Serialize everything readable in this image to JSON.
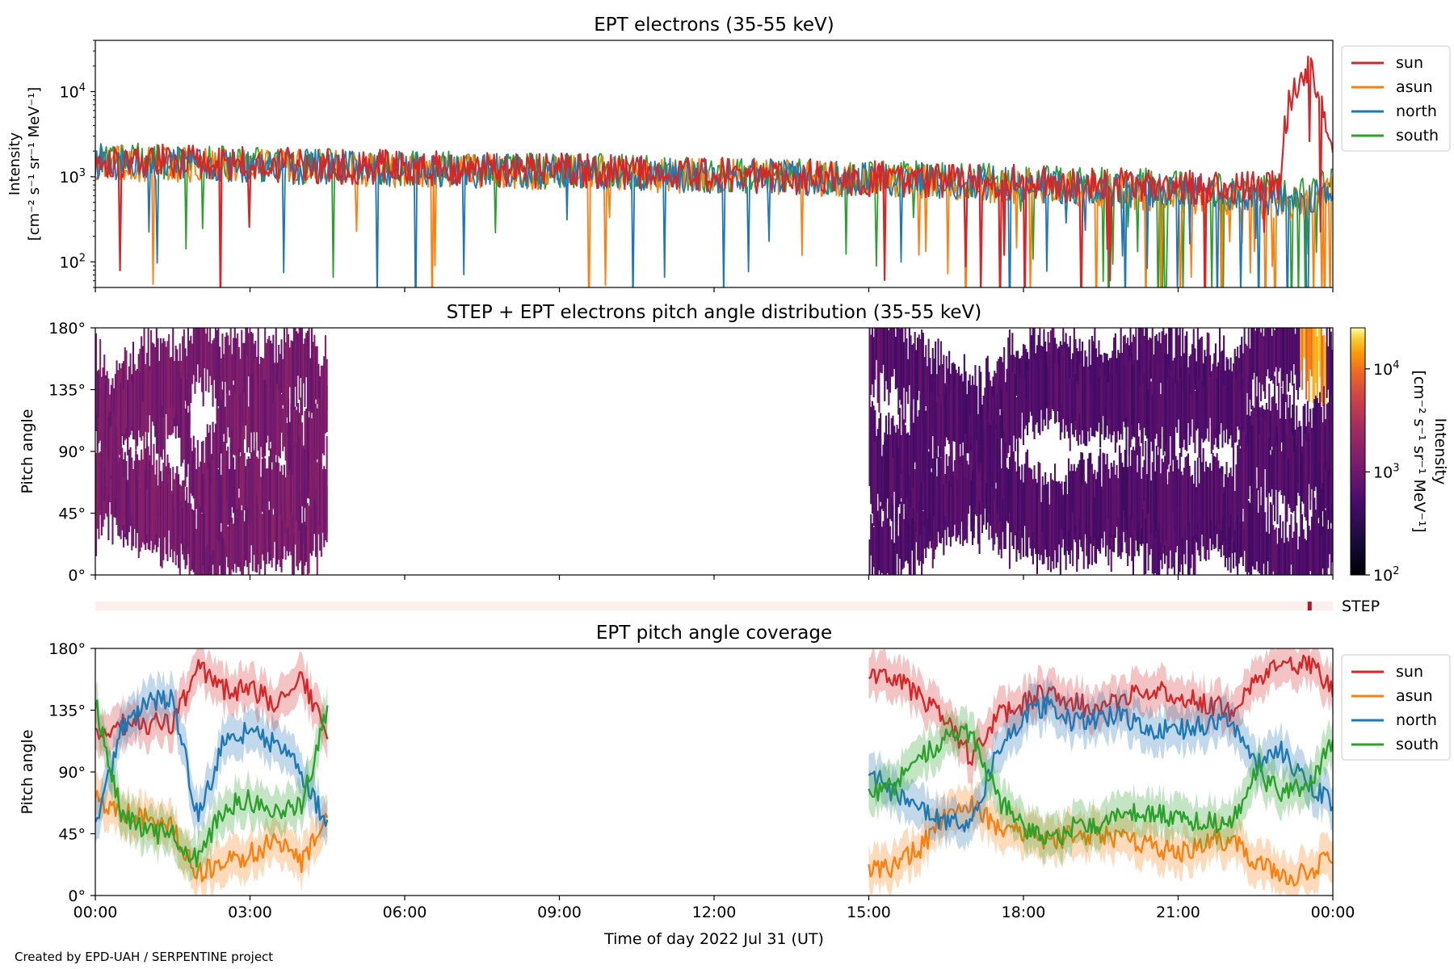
{
  "figure": {
    "credit": "Created by EPD-UAH / SERPENTINE project",
    "xlabel": "Time of day 2022 Jul 31 (UT)",
    "xticks": [
      "00:00",
      "03:00",
      "06:00",
      "09:00",
      "12:00",
      "15:00",
      "18:00",
      "21:00",
      "00:00"
    ]
  },
  "chart_data": [
    {
      "type": "line",
      "title": "EPT electrons (35-55 keV)",
      "ylabel_line1": "Intensity",
      "ylabel_line2": "[cm⁻² s⁻¹ sr⁻¹ MeV⁻¹]",
      "yscale": "log",
      "ylim": [
        50,
        40000
      ],
      "yticks": [
        {
          "label": "10",
          "sup": "2",
          "value": 100
        },
        {
          "label": "10",
          "sup": "3",
          "value": 1000
        },
        {
          "label": "10",
          "sup": "4",
          "value": 10000
        }
      ],
      "xlim_hours": [
        0,
        24
      ],
      "legend_position": "outside-right",
      "x_hours": [
        0,
        1,
        2,
        3,
        4,
        5,
        6,
        7,
        8,
        9,
        10,
        11,
        12,
        13,
        14,
        15,
        16,
        17,
        18,
        19,
        20,
        21,
        22,
        23,
        23.5,
        23.9,
        24
      ],
      "series": [
        {
          "name": "sun",
          "color": "#d62728",
          "values": [
            1600,
            1500,
            1450,
            1400,
            1350,
            1300,
            1300,
            1250,
            1200,
            1200,
            1150,
            1100,
            1050,
            1000,
            1000,
            950,
            900,
            900,
            850,
            800,
            800,
            750,
            750,
            800,
            20000,
            3000,
            1500
          ]
        },
        {
          "name": "asun",
          "color": "#ff7f0e",
          "values": [
            1500,
            1400,
            1350,
            1300,
            1300,
            1250,
            1200,
            1200,
            1150,
            1100,
            1100,
            1050,
            1000,
            1000,
            950,
            900,
            850,
            800,
            750,
            700,
            650,
            600,
            550,
            500,
            500,
            600,
            650
          ]
        },
        {
          "name": "north",
          "color": "#1f77b4",
          "values": [
            1500,
            1450,
            1400,
            1350,
            1300,
            1250,
            1250,
            1200,
            1150,
            1150,
            1100,
            1050,
            1000,
            1000,
            950,
            950,
            900,
            850,
            800,
            750,
            700,
            650,
            600,
            550,
            550,
            600,
            650
          ]
        },
        {
          "name": "south",
          "color": "#2ca02c",
          "values": [
            1600,
            1550,
            1450,
            1400,
            1350,
            1300,
            1250,
            1250,
            1200,
            1150,
            1150,
            1100,
            1050,
            1000,
            1000,
            950,
            950,
            900,
            850,
            800,
            800,
            750,
            700,
            650,
            700,
            750,
            800
          ]
        }
      ]
    },
    {
      "type": "heatmap",
      "title": "STEP + EPT electrons pitch angle distribution (35-55 keV)",
      "ylabel": "Pitch angle",
      "ylim": [
        0,
        180
      ],
      "yticks": [
        "0°",
        "45°",
        "90°",
        "135°",
        "180°"
      ],
      "ytick_values": [
        0,
        45,
        90,
        135,
        180
      ],
      "xlim_hours": [
        0,
        24
      ],
      "colorbar": {
        "label_line1": "Intensity",
        "label_line2": "[cm⁻² s⁻¹ sr⁻¹ MeV⁻¹]",
        "scale": "log",
        "range": [
          100,
          25000
        ],
        "ticks": [
          {
            "label": "10",
            "sup": "2",
            "value": 100
          },
          {
            "label": "10",
            "sup": "3",
            "value": 1000
          },
          {
            "label": "10",
            "sup": "4",
            "value": 10000
          }
        ],
        "colormap": "inferno"
      },
      "data_windows_hours": [
        [
          0,
          4.5
        ],
        [
          15,
          24
        ]
      ],
      "typical_intensity": [
        {
          "window": [
            0,
            4.5
          ],
          "value": 1200
        },
        {
          "window": [
            15,
            24
          ],
          "value": 600
        }
      ],
      "peak": {
        "hour": 23.6,
        "pitch_range": [
          120,
          180
        ],
        "value": 20000
      }
    },
    {
      "type": "bar",
      "label": "STEP",
      "xlim_hours": [
        0,
        24
      ],
      "marker_hour": 23.55,
      "colors": {
        "background": "#fdf0ec",
        "marker": "#b2182b"
      }
    },
    {
      "type": "line",
      "title": "EPT pitch angle coverage",
      "ylabel": "Pitch angle",
      "ylim": [
        0,
        180
      ],
      "yticks": [
        "0°",
        "45°",
        "90°",
        "135°",
        "180°"
      ],
      "ytick_values": [
        0,
        45,
        90,
        135,
        180
      ],
      "xlim_hours": [
        0,
        24
      ],
      "legend_position": "outside-right",
      "segments_hours": [
        [
          0,
          4.5
        ],
        [
          15,
          24
        ]
      ],
      "x_hours": [
        0,
        0.5,
        1,
        1.5,
        2,
        2.5,
        3,
        3.5,
        4,
        4.5,
        15,
        15.5,
        16,
        16.5,
        17,
        17.5,
        18,
        18.5,
        19,
        19.5,
        20,
        20.5,
        21,
        21.5,
        22,
        22.5,
        23,
        23.5,
        24
      ],
      "series": [
        {
          "name": "sun",
          "color": "#d62728",
          "values": [
            115,
            125,
            125,
            125,
            165,
            150,
            150,
            140,
            160,
            115,
            160,
            160,
            145,
            125,
            100,
            130,
            140,
            150,
            140,
            135,
            145,
            150,
            145,
            140,
            135,
            160,
            165,
            170,
            150
          ]
        },
        {
          "name": "asun",
          "color": "#ff7f0e",
          "values": [
            70,
            60,
            55,
            50,
            15,
            25,
            30,
            40,
            25,
            55,
            20,
            20,
            35,
            60,
            65,
            50,
            45,
            40,
            45,
            45,
            40,
            35,
            30,
            40,
            40,
            25,
            15,
            15,
            30
          ]
        },
        {
          "name": "north",
          "color": "#1f77b4",
          "values": [
            50,
            120,
            140,
            145,
            55,
            115,
            120,
            110,
            90,
            50,
            90,
            75,
            65,
            50,
            55,
            105,
            130,
            140,
            125,
            130,
            130,
            120,
            120,
            125,
            130,
            95,
            105,
            85,
            65
          ]
        },
        {
          "name": "south",
          "color": "#2ca02c",
          "values": [
            140,
            60,
            45,
            45,
            25,
            65,
            70,
            60,
            65,
            135,
            75,
            80,
            100,
            115,
            120,
            70,
            50,
            40,
            50,
            50,
            60,
            60,
            55,
            55,
            50,
            90,
            75,
            80,
            110
          ]
        }
      ]
    }
  ]
}
